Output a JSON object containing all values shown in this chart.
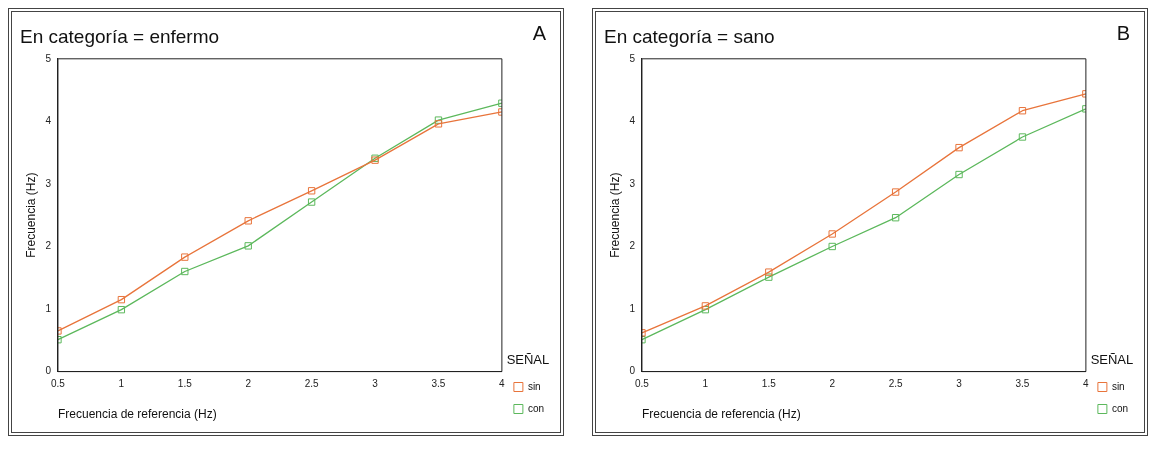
{
  "chart_data": [
    {
      "type": "line",
      "title": "En categoría = enfermo",
      "xlabel": "Frecuencia de referencia (Hz)",
      "ylabel": "Frecuencia (Hz)",
      "legend_title": "SEÑAL",
      "annotations": [
        "A"
      ],
      "x": [
        0.5,
        1,
        1.5,
        2,
        2.5,
        3,
        3.5,
        4
      ],
      "series": [
        {
          "name": "sin",
          "color": "#e8743b",
          "values": [
            0.65,
            1.15,
            1.83,
            2.41,
            2.89,
            3.38,
            3.96,
            4.15
          ]
        },
        {
          "name": "con",
          "color": "#5cb85c",
          "values": [
            0.51,
            0.99,
            1.6,
            2.01,
            2.71,
            3.41,
            4.02,
            4.29
          ]
        }
      ],
      "xlim": [
        0.5,
        4
      ],
      "xticks": [
        0.5,
        1,
        1.5,
        2,
        2.5,
        3,
        3.5,
        4
      ],
      "ylim": [
        0,
        5
      ],
      "yticks": [
        0,
        1,
        2,
        3,
        4,
        5
      ],
      "grid": false,
      "legend": "right",
      "marker": "square",
      "line_style": "solid"
    },
    {
      "type": "line",
      "title": "En categoría = sano",
      "xlabel": "Frecuencia de referencia (Hz)",
      "ylabel": "Frecuencia (Hz)",
      "legend_title": "SEÑAL",
      "annotations": [
        "B"
      ],
      "x": [
        0.5,
        1,
        1.5,
        2,
        2.5,
        3,
        3.5,
        4
      ],
      "series": [
        {
          "name": "sin",
          "color": "#e8743b",
          "values": [
            0.62,
            1.05,
            1.59,
            2.2,
            2.87,
            3.58,
            4.17,
            4.44
          ]
        },
        {
          "name": "con",
          "color": "#5cb85c",
          "values": [
            0.51,
            0.99,
            1.51,
            2.0,
            2.46,
            3.15,
            3.75,
            4.2
          ]
        }
      ],
      "xlim": [
        0.5,
        4
      ],
      "xticks": [
        0.5,
        1,
        1.5,
        2,
        2.5,
        3,
        3.5,
        4
      ],
      "ylim": [
        0,
        5
      ],
      "yticks": [
        0,
        1,
        2,
        3,
        4,
        5
      ],
      "grid": false,
      "legend": "right",
      "marker": "square",
      "line_style": "solid"
    }
  ]
}
